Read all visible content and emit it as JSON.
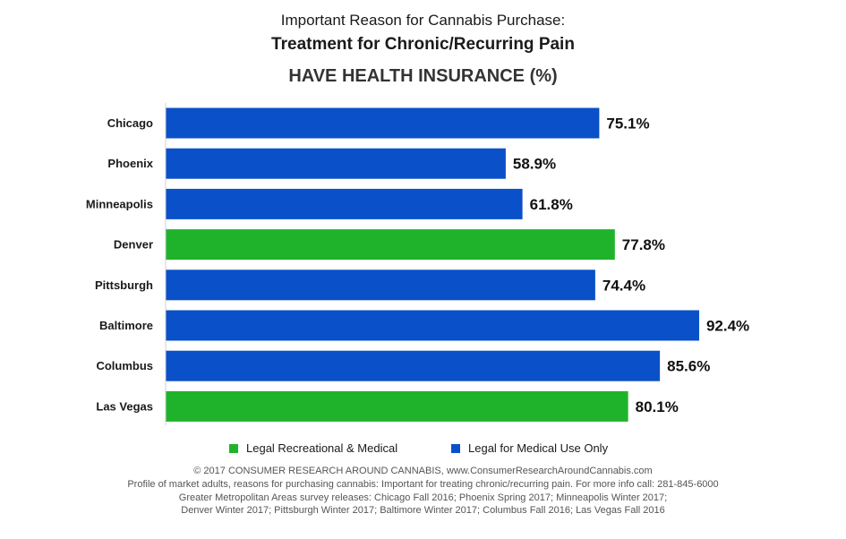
{
  "header": {
    "title_line1": "Important Reason for Cannabis Purchase:",
    "title_line2": "Treatment for Chronic/Recurring Pain",
    "subtitle": "HAVE HEALTH INSURANCE (%)"
  },
  "legend": {
    "items": [
      {
        "label": "Legal Recreational & Medical",
        "color": "#1fb32c"
      },
      {
        "label": "Legal for Medical Use Only",
        "color": "#0a50c8"
      }
    ]
  },
  "footer": {
    "lines": [
      "© 2017 CONSUMER RESEARCH AROUND CANNABIS, www.ConsumerResearchAroundCannabis.com",
      "Profile of market adults, reasons for purchasing cannabis: Important for treating chronic/recurring pain. For more info call: 281-845-6000",
      "Greater Metropolitan Areas survey releases: Chicago Fall 2016; Phoenix Spring 2017; Minneapolis Winter 2017;",
      "Denver Winter 2017; Pittsburgh Winter 2017; Baltimore Winter 2017; Columbus Fall 2016; Las Vegas Fall 2016"
    ]
  },
  "chart_data": {
    "type": "bar",
    "orientation": "horizontal",
    "title": "Important Reason for Cannabis Purchase: Treatment for Chronic/Recurring Pain",
    "subtitle": "HAVE HEALTH INSURANCE (%)",
    "categories": [
      "Chicago",
      "Phoenix",
      "Minneapolis",
      "Denver",
      "Pittsburgh",
      "Baltimore",
      "Columbus",
      "Las Vegas"
    ],
    "values": [
      75.1,
      58.9,
      61.8,
      77.8,
      74.4,
      92.4,
      85.6,
      80.1
    ],
    "data_labels": [
      "75.1%",
      "58.9%",
      "61.8%",
      "77.8%",
      "74.4%",
      "92.4%",
      "85.6%",
      "80.1%"
    ],
    "group": [
      "Legal for Medical Use Only",
      "Legal for Medical Use Only",
      "Legal for Medical Use Only",
      "Legal Recreational & Medical",
      "Legal for Medical Use Only",
      "Legal for Medical Use Only",
      "Legal for Medical Use Only",
      "Legal Recreational & Medical"
    ],
    "colors": {
      "Legal Recreational & Medical": "#1fb32c",
      "Legal for Medical Use Only": "#0a50c8"
    },
    "xlim": [
      0,
      100
    ],
    "xlabel": "",
    "ylabel": "",
    "grid": false,
    "legend_position": "bottom"
  }
}
